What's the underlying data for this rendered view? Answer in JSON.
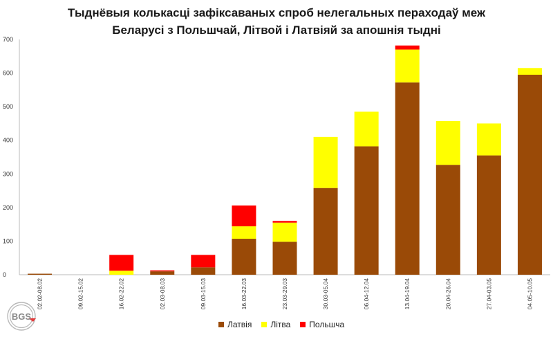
{
  "title_line1": "Тыднёвыя колькасці зафіксаваных спроб нелегальных пераходаў меж",
  "title_line2": "Беларусі з Польшчай, Літвой і Латвіяй за апошнія тыдні",
  "logo_text": "BGS",
  "chart_data": {
    "type": "bar",
    "stacked": true,
    "title": "Тыднёвыя колькасці зафіксаваных спроб нелегальных пераходаў меж Беларусі з Польшчай, Літвой і Латвіяй за апошнія тыдні",
    "categories": [
      "02.02-08.02",
      "09.02-15.02",
      "16.02-22.02",
      "02.03-08.03",
      "09.03-15.03",
      "16.03-22.03",
      "23.03-29.03",
      "30.03-05.04",
      "06.04-12.04",
      "13.04-19.04",
      "20.04-26.04",
      "27.04-03.05",
      "04.05-10.05"
    ],
    "series": [
      {
        "name": "Латвія",
        "color": "#9a4a07",
        "values": [
          3,
          0,
          0,
          10,
          22,
          107,
          98,
          258,
          382,
          572,
          327,
          355,
          595
        ]
      },
      {
        "name": "Літва",
        "color": "#ffff00",
        "values": [
          0,
          0,
          12,
          0,
          0,
          37,
          57,
          152,
          103,
          98,
          130,
          95,
          20
        ]
      },
      {
        "name": "Польшча",
        "color": "#ff0000",
        "values": [
          0,
          0,
          47,
          3,
          37,
          62,
          5,
          0,
          0,
          12,
          0,
          0,
          0
        ]
      }
    ],
    "ylim": [
      0,
      700
    ],
    "yticks": [
      0,
      100,
      200,
      300,
      400,
      500,
      600,
      700
    ],
    "grid": false,
    "legend_position": "bottom"
  }
}
